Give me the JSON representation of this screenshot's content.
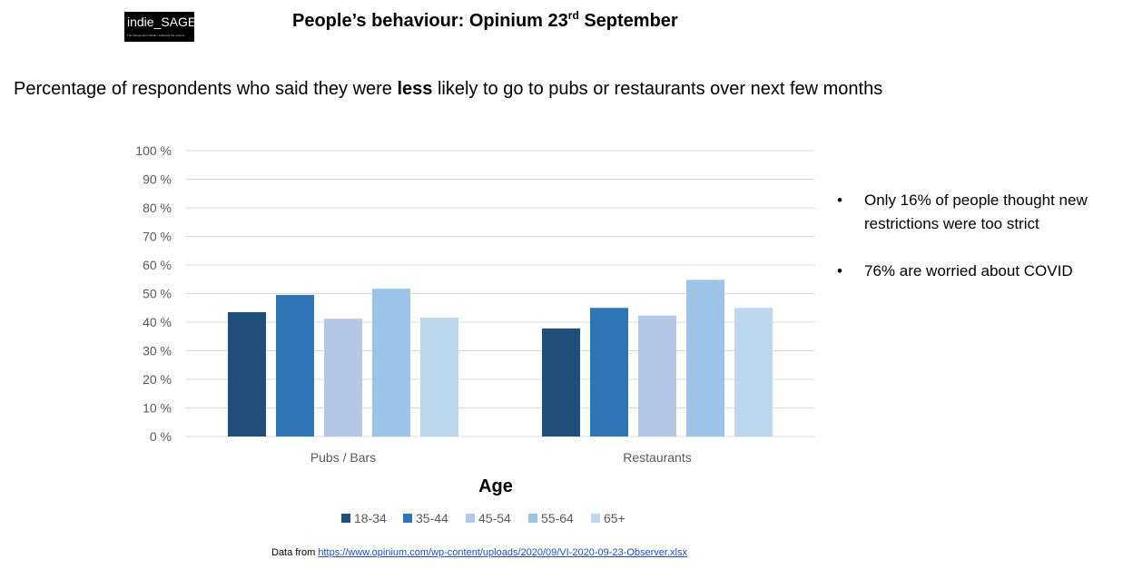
{
  "logo": {
    "text": "indie_SAGE",
    "tagline": "The Independent SAGE • Following the science"
  },
  "title": {
    "main": "People’s behaviour: Opinium 23",
    "superscript": "rd",
    "suffix": " September"
  },
  "subtitle": {
    "before": "Percentage of respondents who said they were ",
    "bold": "less",
    "after": " likely to go to pubs or restaurants over next few months"
  },
  "notes": [
    "Only 16% of people thought new restrictions were too strict",
    "76% are worried about COVID"
  ],
  "source": {
    "prefix": "Data from ",
    "link": "https://www.opinium.com/wp-content/uploads/2020/09/VI-2020-09-23-Observer.xlsx"
  },
  "chart_data": {
    "type": "bar",
    "categories": [
      "Pubs /  Bars",
      "Restaurants"
    ],
    "legend_title": "Age",
    "legend_position": "bottom",
    "ylim": [
      0,
      100
    ],
    "yticks": [
      0,
      10,
      20,
      30,
      40,
      50,
      60,
      70,
      80,
      90,
      100
    ],
    "ytick_labels": [
      "0 %",
      "10 %",
      "20 %",
      "30 %",
      "40 %",
      "50 %",
      "60 %",
      "70 %",
      "80 %",
      "90 %",
      "100 %"
    ],
    "grid": true,
    "series": [
      {
        "name": "18-34",
        "color": "#1f4e79",
        "values": [
          43.5,
          37.8
        ]
      },
      {
        "name": "35-44",
        "color": "#2e75b6",
        "values": [
          49.5,
          45.0
        ]
      },
      {
        "name": "45-54",
        "color": "#b4c7e7",
        "values": [
          41.2,
          42.3
        ]
      },
      {
        "name": "55-64",
        "color": "#9dc3e6",
        "values": [
          51.7,
          54.8
        ]
      },
      {
        "name": "65+",
        "color": "#bdd7ee",
        "values": [
          41.6,
          45.0
        ]
      }
    ]
  }
}
